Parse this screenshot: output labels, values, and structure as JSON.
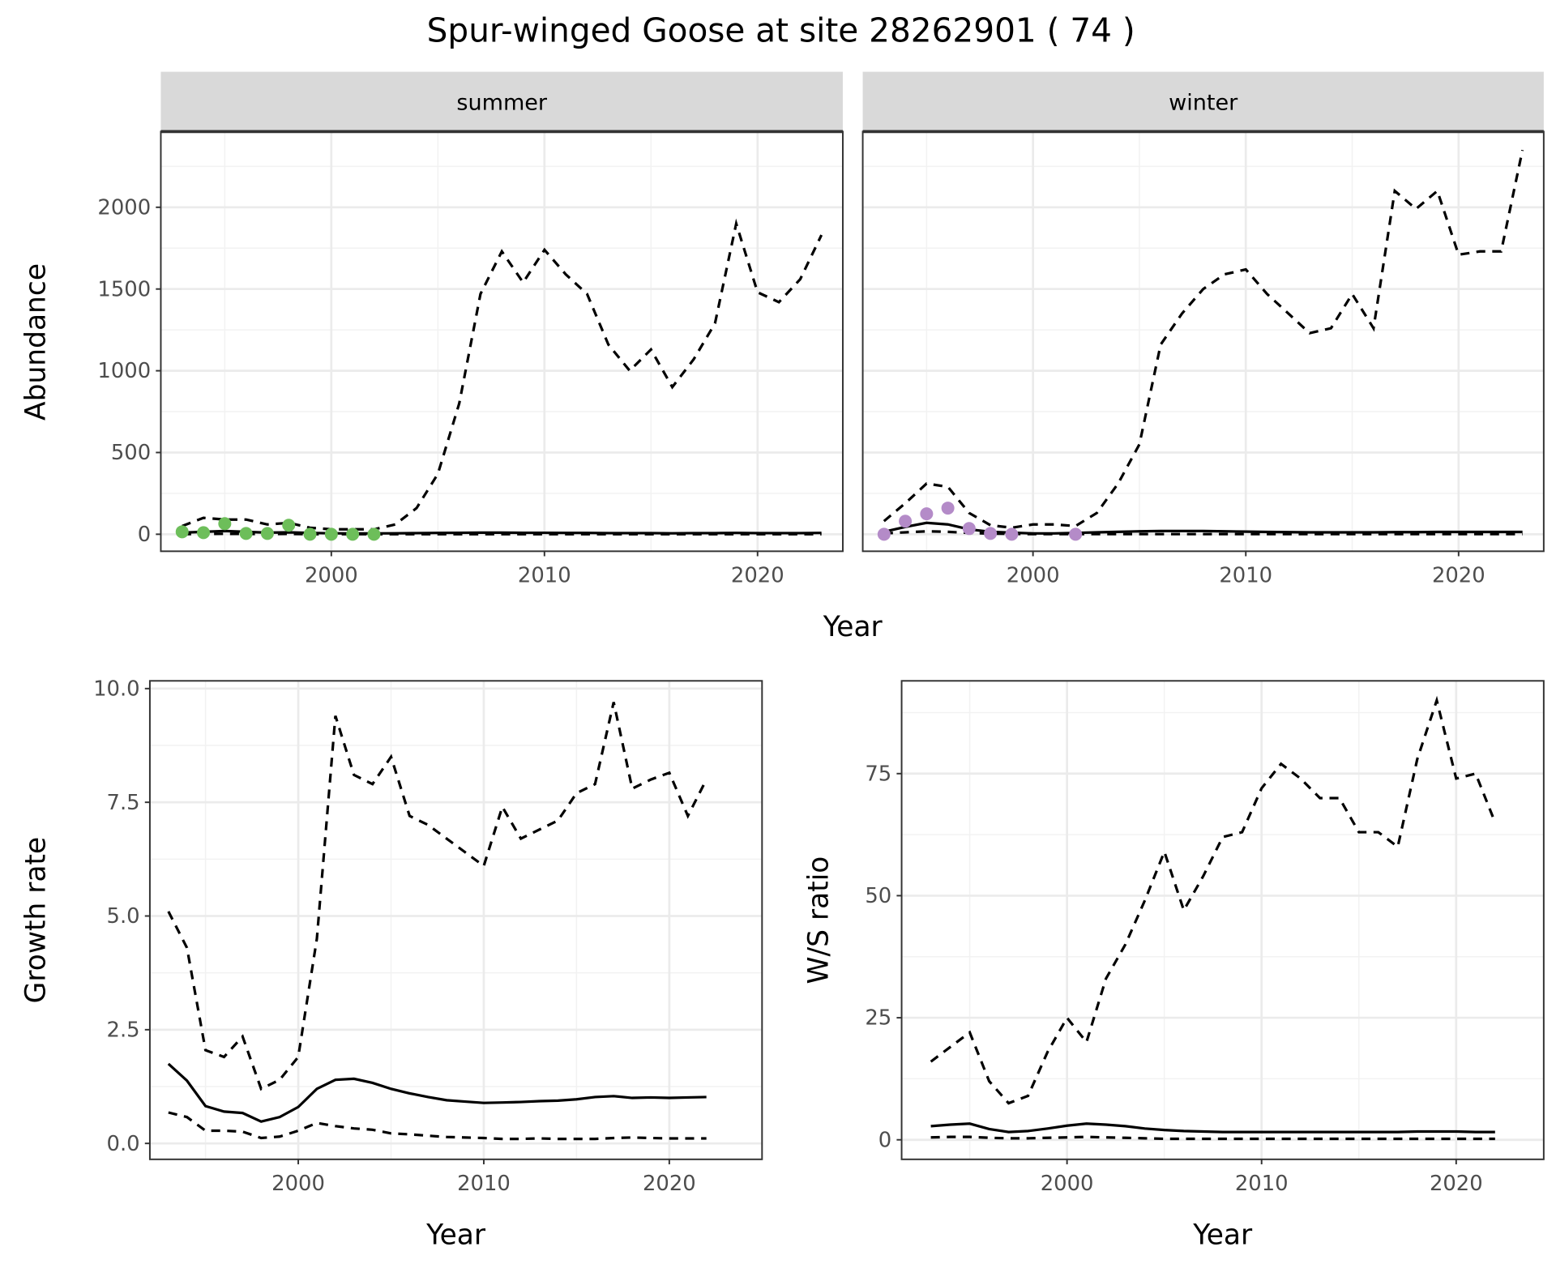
{
  "title": "Spur-winged Goose at site 28262901 ( 74 )",
  "colors": {
    "summer_points": "#6DBE5A",
    "winter_points": "#B48BC8",
    "line": "#000000",
    "strip_fill": "#D9D9D9",
    "panel_border": "#333333"
  },
  "chart_data": [
    {
      "type": "line",
      "facets": [
        "summer",
        "winter"
      ],
      "xlabel": "Year",
      "ylabel": "Abundance",
      "xlim": [
        1992,
        2024
      ],
      "ylim": [
        -104,
        2463
      ],
      "xticks": [
        2000,
        2010,
        2020
      ],
      "yticks": [
        0,
        500,
        1000,
        1500,
        2000
      ],
      "grid": true,
      "panels": {
        "summer": {
          "years": [
            1993,
            1994,
            1995,
            1996,
            1997,
            1998,
            1999,
            2000,
            2001,
            2002,
            2003,
            2004,
            2005,
            2006,
            2007,
            2008,
            2009,
            2010,
            2011,
            2012,
            2013,
            2014,
            2015,
            2016,
            2017,
            2018,
            2019,
            2020,
            2021,
            2022,
            2023
          ],
          "upper": [
            50,
            100,
            90,
            90,
            60,
            70,
            40,
            30,
            30,
            30,
            60,
            160,
            370,
            800,
            1470,
            1730,
            1540,
            1740,
            1590,
            1470,
            1160,
            1000,
            1130,
            900,
            1070,
            1290,
            1900,
            1480,
            1420,
            1560,
            1830
          ],
          "estimate": [
            10,
            15,
            20,
            15,
            10,
            12,
            8,
            6,
            5,
            5,
            6,
            7,
            8,
            9,
            10,
            10,
            9,
            9,
            8,
            8,
            7,
            7,
            7,
            6,
            7,
            7,
            8,
            7,
            7,
            7,
            8
          ],
          "lower": [
            0,
            2,
            3,
            2,
            1,
            2,
            0,
            0,
            0,
            0,
            0,
            0,
            0,
            0,
            0,
            0,
            0,
            0,
            0,
            0,
            0,
            0,
            0,
            0,
            0,
            0,
            0,
            0,
            0,
            0,
            0
          ],
          "points": {
            "years": [
              1993,
              1994,
              1995,
              1996,
              1997,
              1998,
              1999,
              2000,
              2001,
              2002
            ],
            "values": [
              15,
              10,
              65,
              5,
              5,
              55,
              0,
              0,
              0,
              0
            ]
          }
        },
        "winter": {
          "years": [
            1993,
            1994,
            1995,
            1996,
            1997,
            1998,
            1999,
            2000,
            2001,
            2002,
            2003,
            2004,
            2005,
            2006,
            2007,
            2008,
            2009,
            2010,
            2011,
            2012,
            2013,
            2014,
            2015,
            2016,
            2017,
            2018,
            2019,
            2020,
            2021,
            2022,
            2023
          ],
          "upper": [
            80,
            190,
            310,
            290,
            130,
            55,
            40,
            60,
            60,
            50,
            130,
            310,
            550,
            1160,
            1350,
            1500,
            1590,
            1620,
            1470,
            1350,
            1230,
            1260,
            1470,
            1260,
            2100,
            1990,
            2100,
            1710,
            1730,
            1730,
            2350
          ],
          "estimate": [
            15,
            45,
            70,
            60,
            30,
            15,
            10,
            5,
            5,
            8,
            12,
            15,
            18,
            20,
            20,
            20,
            18,
            16,
            14,
            13,
            12,
            12,
            12,
            12,
            13,
            13,
            14,
            14,
            14,
            14,
            14
          ],
          "lower": [
            5,
            12,
            18,
            15,
            8,
            4,
            2,
            1,
            1,
            1,
            1,
            1,
            1,
            1,
            1,
            1,
            1,
            1,
            1,
            1,
            1,
            1,
            1,
            1,
            1,
            1,
            1,
            1,
            1,
            1,
            1
          ],
          "points": {
            "years": [
              1993,
              1994,
              1995,
              1996,
              1997,
              1998,
              1999,
              2002
            ],
            "values": [
              0,
              80,
              125,
              160,
              35,
              5,
              0,
              0
            ]
          }
        }
      }
    },
    {
      "type": "line",
      "xlabel": "Year",
      "ylabel": "Growth rate",
      "xlim": [
        1992,
        2025
      ],
      "ylim": [
        -0.35,
        10.17
      ],
      "xticks": [
        2000,
        2010,
        2020
      ],
      "yticks": [
        "0.0",
        "2.5",
        "5.0",
        "7.5",
        "10.0"
      ],
      "grid": true,
      "years": [
        1993,
        1994,
        1995,
        1996,
        1997,
        1998,
        1999,
        2000,
        2001,
        2002,
        2003,
        2004,
        2005,
        2006,
        2007,
        2008,
        2009,
        2010,
        2011,
        2012,
        2013,
        2014,
        2015,
        2016,
        2017,
        2018,
        2019,
        2020,
        2021,
        2022
      ],
      "upper": [
        5.1,
        4.3,
        2.05,
        1.9,
        2.35,
        1.2,
        1.4,
        1.9,
        4.5,
        9.4,
        8.1,
        7.9,
        8.5,
        7.2,
        7.0,
        6.7,
        6.4,
        6.1,
        7.4,
        6.7,
        6.9,
        7.1,
        7.7,
        7.9,
        9.7,
        7.8,
        8.0,
        8.15,
        7.2,
        8.0
      ],
      "estimate": [
        1.75,
        1.38,
        0.82,
        0.7,
        0.67,
        0.48,
        0.58,
        0.8,
        1.2,
        1.4,
        1.42,
        1.33,
        1.2,
        1.1,
        1.02,
        0.95,
        0.92,
        0.89,
        0.9,
        0.91,
        0.93,
        0.94,
        0.97,
        1.02,
        1.04,
        1.0,
        1.01,
        1.0,
        1.01,
        1.02
      ],
      "lower": [
        0.68,
        0.58,
        0.28,
        0.28,
        0.26,
        0.12,
        0.15,
        0.28,
        0.45,
        0.38,
        0.33,
        0.3,
        0.22,
        0.2,
        0.17,
        0.14,
        0.13,
        0.12,
        0.1,
        0.1,
        0.11,
        0.1,
        0.1,
        0.1,
        0.12,
        0.13,
        0.12,
        0.11,
        0.11,
        0.11
      ]
    },
    {
      "type": "line",
      "xlabel": "Year",
      "ylabel": "W/S ratio",
      "xlim": [
        1991.5,
        2024.5
      ],
      "ylim": [
        -4,
        94
      ],
      "xticks": [
        2000,
        2010,
        2020
      ],
      "yticks": [
        "0",
        "25",
        "50",
        "75"
      ],
      "grid": true,
      "years": [
        1993,
        1994,
        1995,
        1996,
        1997,
        1998,
        1999,
        2000,
        2001,
        2002,
        2003,
        2004,
        2005,
        2006,
        2007,
        2008,
        2009,
        2010,
        2011,
        2012,
        2013,
        2014,
        2015,
        2016,
        2017,
        2018,
        2019,
        2020,
        2021,
        2022
      ],
      "upper": [
        16,
        19,
        22,
        12,
        7.5,
        9,
        18,
        25,
        20,
        33,
        40,
        49,
        59,
        47,
        54,
        62,
        63,
        72,
        77,
        74,
        70,
        70,
        63,
        63,
        60,
        78,
        90,
        74,
        75,
        65
      ],
      "estimate": [
        2.8,
        3.1,
        3.3,
        2.2,
        1.6,
        1.8,
        2.3,
        2.9,
        3.3,
        3.1,
        2.8,
        2.3,
        2.0,
        1.8,
        1.7,
        1.6,
        1.6,
        1.6,
        1.6,
        1.6,
        1.6,
        1.6,
        1.6,
        1.6,
        1.6,
        1.7,
        1.7,
        1.7,
        1.6,
        1.6
      ],
      "lower": [
        0.5,
        0.6,
        0.6,
        0.4,
        0.3,
        0.3,
        0.4,
        0.5,
        0.6,
        0.5,
        0.4,
        0.3,
        0.2,
        0.2,
        0.2,
        0.2,
        0.2,
        0.2,
        0.2,
        0.2,
        0.2,
        0.2,
        0.2,
        0.2,
        0.2,
        0.2,
        0.2,
        0.2,
        0.2,
        0.2
      ]
    }
  ]
}
